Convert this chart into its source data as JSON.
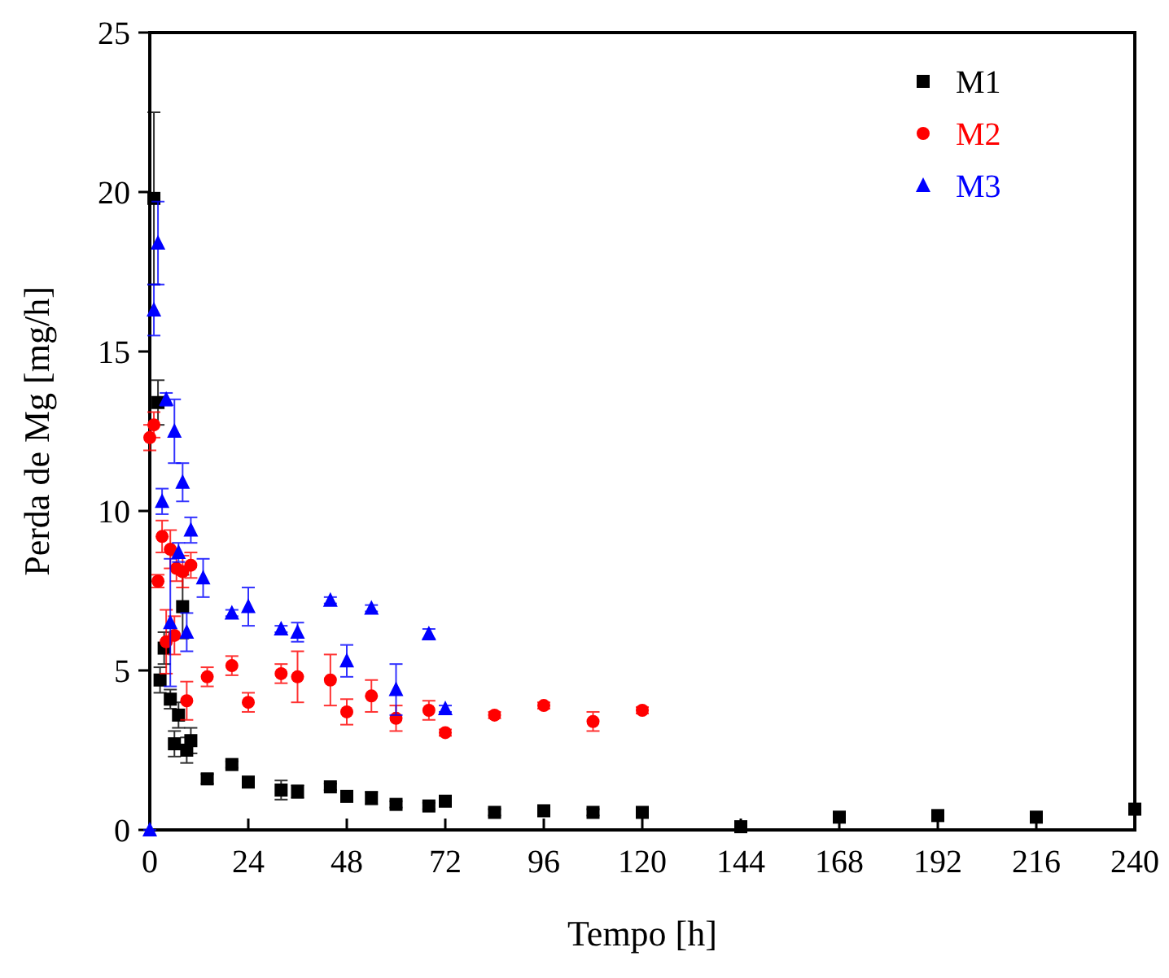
{
  "chart_data": {
    "type": "scatter",
    "xlabel": "Tempo [h]",
    "ylabel": "Perda de Mg [mg/h]",
    "xlim": [
      0,
      240
    ],
    "ylim": [
      0,
      25
    ],
    "xticks": [
      0,
      24,
      48,
      72,
      96,
      120,
      144,
      168,
      192,
      216,
      240
    ],
    "yticks": [
      0,
      5,
      10,
      15,
      20,
      25
    ],
    "legend": "top right",
    "grid": false,
    "series": [
      {
        "name": "M1",
        "color": "#000000",
        "marker": "square",
        "x": [
          1,
          2,
          2.5,
          3.5,
          5,
          6,
          7,
          8,
          9,
          10,
          14,
          20,
          24,
          32,
          36,
          44,
          48,
          54,
          60,
          68,
          72,
          84,
          96,
          108,
          120,
          144,
          168,
          192,
          216,
          240
        ],
        "values": [
          19.8,
          13.4,
          4.7,
          5.7,
          4.1,
          2.7,
          3.6,
          7.0,
          2.5,
          2.8,
          1.6,
          2.05,
          1.5,
          1.25,
          1.2,
          1.35,
          1.05,
          1.0,
          0.8,
          0.75,
          0.9,
          0.55,
          0.6,
          0.55,
          0.55,
          0.1,
          0.4,
          0.45,
          0.4,
          0.65
        ],
        "errors": [
          2.7,
          0.7,
          0.4,
          0.5,
          0.3,
          0.4,
          0.4,
          1.0,
          0.4,
          0.4,
          0.15,
          0.1,
          0.15,
          0.3,
          0.2,
          0.1,
          0.15,
          0.2,
          0.1,
          0.1,
          0.15,
          0.1,
          0.1,
          0.1,
          0.1,
          0.05,
          0.1,
          0.1,
          0.1,
          0.1
        ]
      },
      {
        "name": "M2",
        "color": "#ff0000",
        "marker": "circle",
        "x": [
          0,
          1,
          2,
          3,
          4,
          5,
          6,
          6.5,
          8,
          9,
          10,
          14,
          20,
          24,
          32,
          36,
          44,
          48,
          54,
          60,
          68,
          72,
          84,
          96,
          108,
          120
        ],
        "values": [
          12.3,
          12.7,
          7.8,
          9.2,
          5.9,
          8.8,
          6.1,
          8.2,
          8.1,
          4.05,
          8.3,
          4.8,
          5.15,
          4.0,
          4.9,
          4.8,
          4.7,
          3.7,
          4.2,
          3.5,
          3.75,
          3.05,
          3.6,
          3.9,
          3.4,
          3.75
        ],
        "errors": [
          0.4,
          0.4,
          0.2,
          0.5,
          1.0,
          0.6,
          0.6,
          0.4,
          0.5,
          0.6,
          0.4,
          0.3,
          0.3,
          0.3,
          0.3,
          0.8,
          0.8,
          0.4,
          0.5,
          0.4,
          0.3,
          0.1,
          0.1,
          0.1,
          0.3,
          0.1
        ]
      },
      {
        "name": "M3",
        "color": "#0000ff",
        "marker": "triangle",
        "x": [
          0,
          1,
          2,
          3,
          4,
          5,
          6,
          7,
          8,
          9,
          10,
          13,
          20,
          24,
          32,
          36,
          44,
          48,
          54,
          60,
          68,
          72
        ],
        "values": [
          0,
          16.3,
          18.4,
          10.3,
          13.5,
          6.5,
          12.5,
          8.7,
          10.9,
          6.2,
          9.4,
          7.9,
          6.8,
          7.0,
          6.3,
          6.2,
          7.2,
          5.3,
          6.95,
          4.4,
          6.15,
          3.8
        ],
        "errors": [
          0,
          0.8,
          1.3,
          0.4,
          0.2,
          2.0,
          1.0,
          0.3,
          0.6,
          0.6,
          0.4,
          0.6,
          0.1,
          0.6,
          0.1,
          0.3,
          0.1,
          0.5,
          0.1,
          0.8,
          0.15,
          0.1
        ]
      }
    ]
  }
}
